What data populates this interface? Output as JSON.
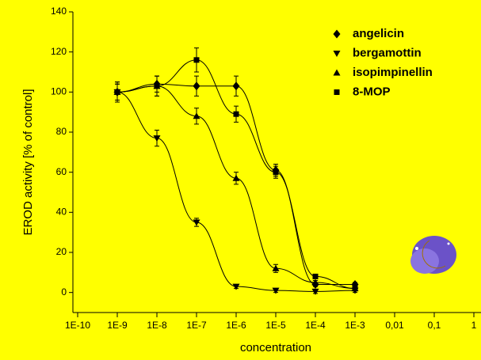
{
  "chart_data": {
    "type": "scatter",
    "x_label": "concentration",
    "y_label": "EROD activity [% of control]",
    "xscale": "log",
    "xlim": [
      1e-10,
      1
    ],
    "ylim": [
      -10,
      140
    ],
    "xticks": [
      {
        "value": 1e-10,
        "label": "1E-10"
      },
      {
        "value": 1e-09,
        "label": "1E-9"
      },
      {
        "value": 1e-08,
        "label": "1E-8"
      },
      {
        "value": 1e-07,
        "label": "1E-7"
      },
      {
        "value": 1e-06,
        "label": "1E-6"
      },
      {
        "value": 1e-05,
        "label": "1E-5"
      },
      {
        "value": 0.0001,
        "label": "1E-4"
      },
      {
        "value": 0.001,
        "label": "1E-3"
      },
      {
        "value": 0.01,
        "label": "0,01"
      },
      {
        "value": 0.1,
        "label": "0,1"
      },
      1
    ],
    "yticks": [
      0,
      20,
      40,
      60,
      80,
      100,
      120,
      140
    ],
    "legend": "top-right",
    "x": [
      1e-09,
      1e-08,
      1e-07,
      1e-06,
      1e-05,
      0.0001,
      0.001
    ],
    "series": [
      {
        "name": "angelicin",
        "marker": "diamond",
        "color": "#000000",
        "values": [
          100,
          104,
          103,
          103,
          61,
          4,
          4
        ],
        "errors": [
          4,
          4,
          5,
          5,
          3,
          1,
          1
        ]
      },
      {
        "name": "bergamottin",
        "marker": "triangle-down",
        "color": "#000000",
        "values": [
          100,
          77,
          35,
          3,
          1,
          0.5,
          1
        ],
        "errors": [
          5,
          4,
          2,
          1,
          1,
          1,
          1
        ]
      },
      {
        "name": "isopimpinellin",
        "marker": "triangle-up",
        "color": "#000000",
        "values": [
          100,
          103,
          88,
          57,
          12,
          5,
          2
        ],
        "errors": [
          4,
          5,
          4,
          3,
          2,
          1,
          1
        ]
      },
      {
        "name": "8-MOP",
        "marker": "square",
        "color": "#000000",
        "values": [
          100,
          103,
          116,
          89,
          60,
          8,
          2
        ],
        "errors": [
          5,
          5,
          6,
          4,
          3,
          1,
          1
        ]
      }
    ]
  }
}
